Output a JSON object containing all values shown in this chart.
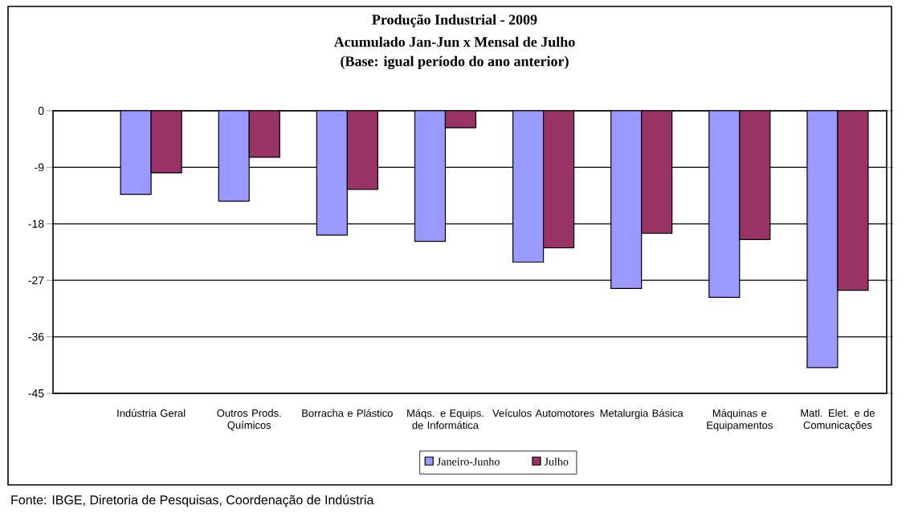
{
  "chart_data": {
    "type": "bar",
    "title": "Produção Industrial - 2009",
    "subtitle": "Acumulado Jan-Jun x Mensal de Julho",
    "annotations": [
      "(Base: igual período do ano anterior)",
      "Fonte: IBGE, Diretoria de Pesquisas, Coordenação de Indústria"
    ],
    "categories": [
      "Indústria Geral",
      "Outros Prods. Químicos",
      "Borracha e Plástico",
      "Máqs. e Equips. de Informática",
      "Veículos Automotores",
      "Metalurgia Básica",
      "Máquinas e Equipamentos",
      "Matl. Elet. e de Comunicações"
    ],
    "series": [
      {
        "name": "Janeiro-Junho",
        "color": "#9999ff",
        "values": [
          -13.3,
          -14.4,
          -19.8,
          -20.8,
          -24.1,
          -28.3,
          -29.7,
          -40.9
        ]
      },
      {
        "name": "Julho",
        "color": "#993366",
        "values": [
          -9.9,
          -7.4,
          -12.5,
          -2.7,
          -21.8,
          -19.5,
          -20.5,
          -28.6
        ]
      }
    ],
    "ylim": [
      -45,
      0
    ],
    "yticks": [
      -45,
      -36,
      -27,
      -18,
      -9,
      0
    ],
    "grid": "y",
    "legend": "bottom"
  }
}
